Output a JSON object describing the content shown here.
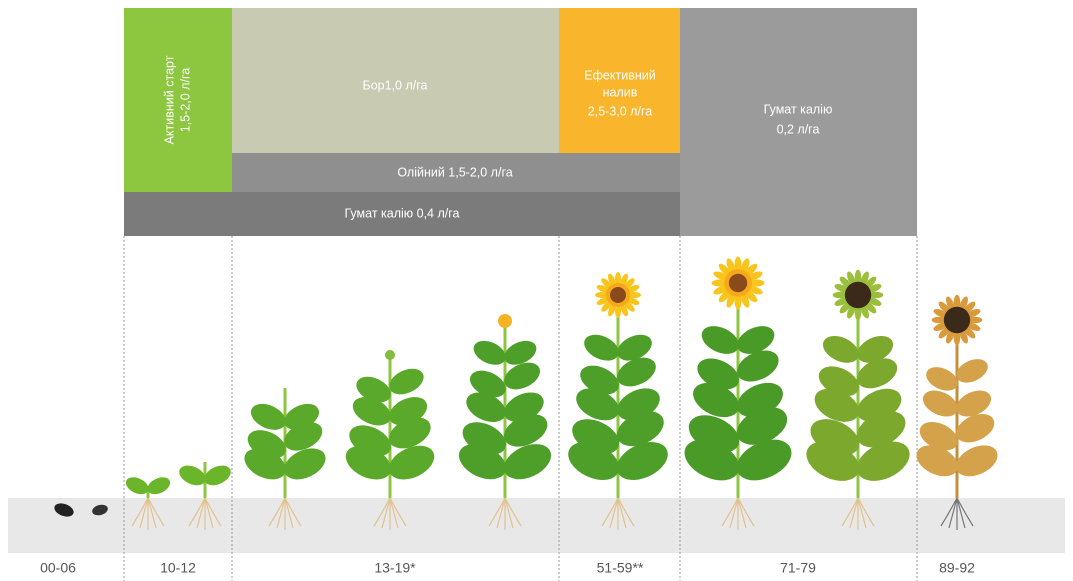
{
  "blocks": [
    {
      "lines": [
        "Активний старт",
        "1,5-2,0 л/га"
      ]
    },
    {
      "lines": [
        "Бор1,0 л/га"
      ]
    },
    {
      "lines": [
        "Ефективний",
        "налив",
        "2,5-3,0 л/га"
      ]
    },
    {
      "lines": [
        "Гумат калію",
        "0,2 л/га"
      ]
    },
    {
      "lines": [
        "Олійний 1,5-2,0 л/га"
      ]
    },
    {
      "lines": [
        "Гумат калію 0,4 л/га"
      ]
    }
  ],
  "stages": [
    "00-06",
    "10-12",
    "13-19*",
    "51-59**",
    "71-79",
    "89-92"
  ]
}
